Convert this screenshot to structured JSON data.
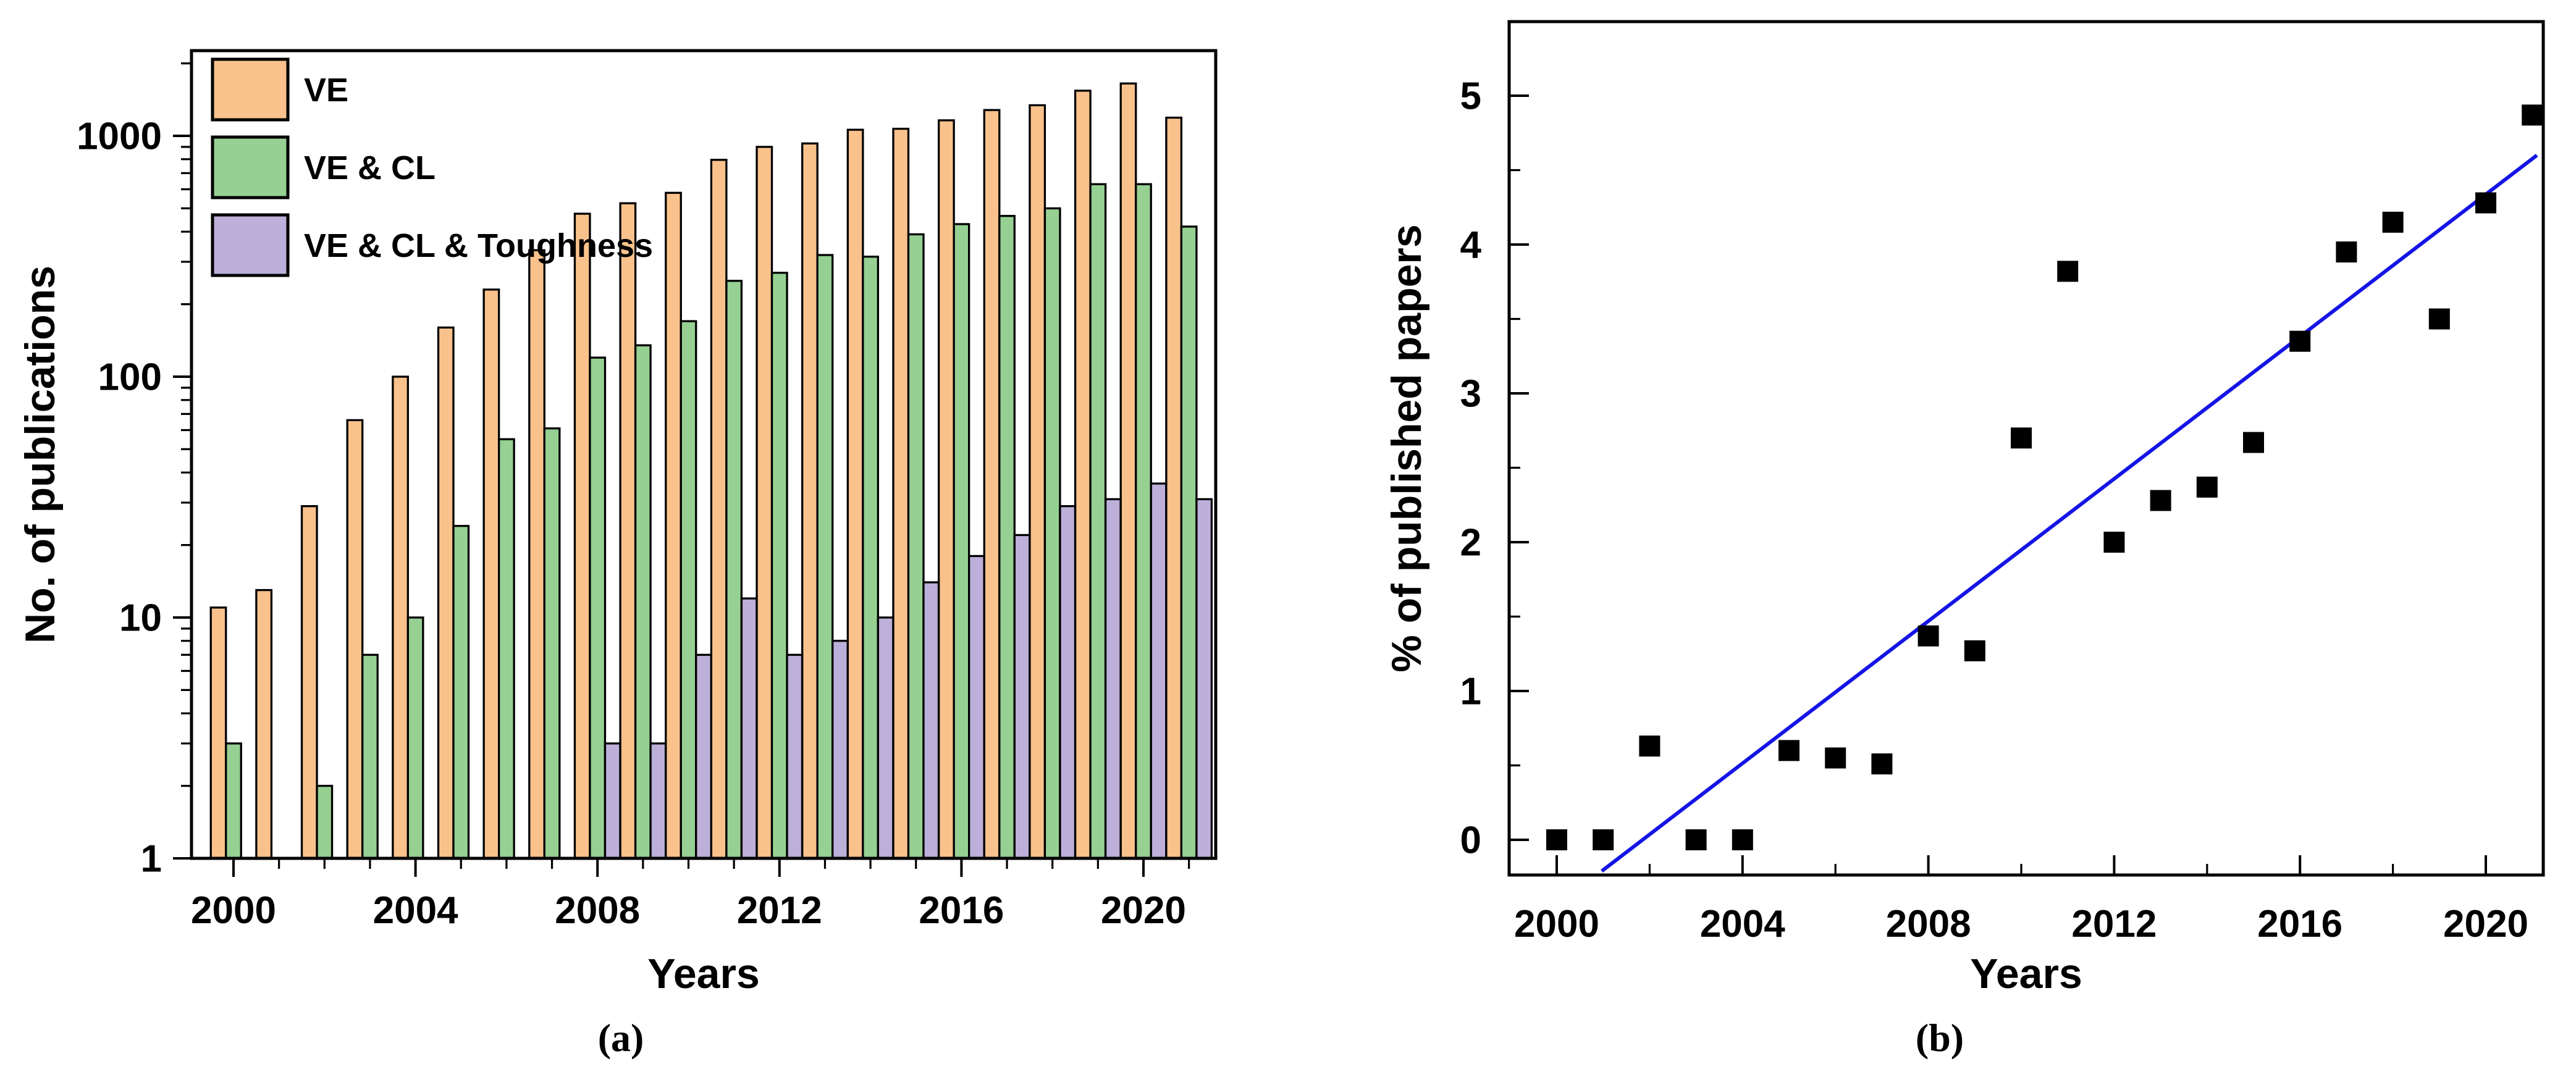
{
  "figure": {
    "background": "#FFFFFF",
    "captions": {
      "a": "(a)",
      "b": "(b)"
    }
  },
  "chart_data": [
    {
      "id": "panel_a",
      "type": "bar",
      "caption": "(a)",
      "title": "",
      "xlabel": "Years",
      "ylabel": "No. of publications",
      "y_scale": "log",
      "ylim": [
        1,
        2260
      ],
      "xlim": [
        1999.1,
        2021.6
      ],
      "x_major_ticks": [
        2000,
        2004,
        2008,
        2012,
        2016,
        2020
      ],
      "x_minor_tick_step_years": 1,
      "y_major_ticks": [
        1,
        10,
        100,
        1000
      ],
      "grid": false,
      "legend_position": "top-left-inside",
      "categories": [
        2000,
        2001,
        2002,
        2003,
        2004,
        2005,
        2006,
        2007,
        2008,
        2009,
        2010,
        2011,
        2012,
        2013,
        2014,
        2015,
        2016,
        2017,
        2018,
        2019,
        2020,
        2021
      ],
      "series": [
        {
          "name": "VE",
          "color": "#F9C28C",
          "outline": "#000000",
          "values": [
            11,
            13,
            29,
            66,
            100,
            160,
            230,
            335,
            475,
            525,
            580,
            795,
            900,
            930,
            1060,
            1070,
            1160,
            1280,
            1340,
            1540,
            1650,
            1190
          ]
        },
        {
          "name": "VE & CL",
          "color": "#96D093",
          "outline": "#000000",
          "values": [
            3,
            null,
            2,
            7,
            10,
            24,
            55,
            61,
            120,
            135,
            170,
            250,
            270,
            320,
            315,
            390,
            430,
            465,
            500,
            630,
            630,
            420
          ]
        },
        {
          "name": "VE & CL & Toughness",
          "color": "#BCAFD9",
          "outline": "#000000",
          "values": [
            null,
            null,
            null,
            null,
            null,
            null,
            null,
            null,
            3,
            3,
            7,
            12,
            7,
            8,
            10,
            14,
            18,
            22,
            29,
            31,
            36,
            31
          ]
        }
      ]
    },
    {
      "id": "panel_b",
      "type": "scatter",
      "caption": "(b)",
      "title": "",
      "xlabel": "Years",
      "ylabel": "% of published papers",
      "ylim": [
        -0.24,
        5.5
      ],
      "xlim": [
        1999.0,
        2021.85
      ],
      "x_major_ticks": [
        2000,
        2004,
        2008,
        2012,
        2016,
        2020
      ],
      "x_minor_tick_step_years": 2,
      "y_major_ticks": [
        0,
        1,
        2,
        3,
        4,
        5
      ],
      "y_minor_tick_step": 0.5,
      "grid": false,
      "marker": {
        "shape": "square",
        "color": "#000000",
        "size": 34
      },
      "x": [
        2000,
        2001,
        2002,
        2003,
        2004,
        2005,
        2006,
        2007,
        2008,
        2009,
        2010,
        2011,
        2012,
        2013,
        2014,
        2015,
        2016,
        2017,
        2018,
        2019,
        2020,
        2021
      ],
      "y": [
        0.0,
        0.0,
        0.63,
        0.0,
        0.0,
        0.6,
        0.55,
        0.51,
        1.37,
        1.27,
        2.7,
        3.82,
        2.0,
        2.28,
        2.37,
        2.67,
        3.35,
        3.95,
        4.15,
        3.5,
        4.28,
        4.87
      ],
      "fit_line": {
        "color": "#1414E6",
        "x1": 2000.97,
        "y1": -0.21,
        "x2": 2021.1,
        "y2": 4.6
      }
    }
  ]
}
